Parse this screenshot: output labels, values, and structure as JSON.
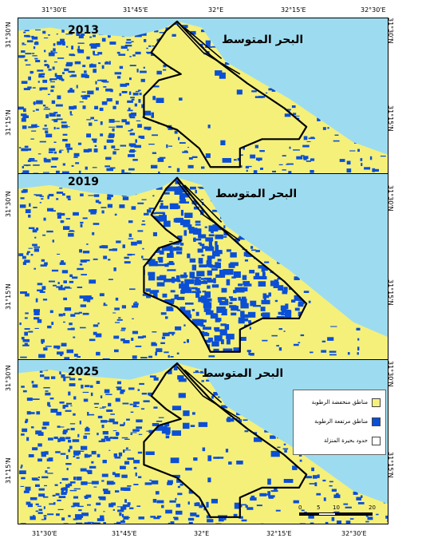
{
  "panels": [
    {
      "year": "2013",
      "sea_label": "البحر المتوسط"
    },
    {
      "year": "2019",
      "sea_label": "البحر المتوسط"
    },
    {
      "year": "2025",
      "sea_label": "البحر المتوسط"
    }
  ],
  "top_ticks": [
    "31°30'E",
    "31°45'E",
    "32°E",
    "32°15'E",
    "32°30'E"
  ],
  "bottom_ticks": [
    "31°30'E",
    "31°45'E",
    "32°E",
    "32°15'E",
    "32°30'E"
  ],
  "lat_ticks": [
    "31°30'N",
    "31°15'N"
  ],
  "legend": {
    "items": [
      {
        "label": "مناطق منخفضة الرطوبة",
        "color": "#f5f07a"
      },
      {
        "label": "مناطق مرتفعة الرطوبة",
        "color": "#0a4fd6"
      },
      {
        "label": "حدود بحيرة المنزلة",
        "color": "#ffffff"
      }
    ]
  },
  "scale_bar": {
    "labels": [
      "0",
      "5",
      "10",
      "20"
    ]
  },
  "colors": {
    "sea": "#9ddcf0",
    "dry": "#f5f07a",
    "wet": "#0a4fd6",
    "boundary": "#000000"
  }
}
